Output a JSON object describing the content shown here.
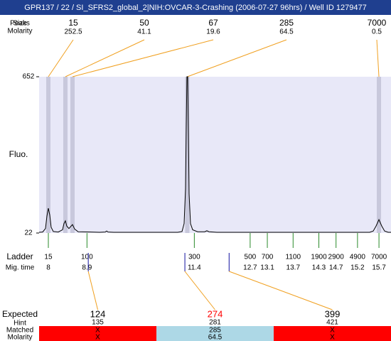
{
  "title": "GPR137 / 22 / SI_SFRS2_global_2|NIH:OVCAR-3-Crashing (2006-07-27 96hrs) / Well ID 1279477",
  "chart_data": {
    "type": "line",
    "y_label": "Fluo.",
    "x": [
      7.785,
      7.868,
      7.934,
      7.967,
      8.0,
      8.033,
      8.066,
      8.116,
      8.232,
      8.331,
      8.364,
      8.397,
      8.43,
      8.48,
      8.53,
      8.563,
      8.613,
      8.695,
      9.192,
      9.325,
      9.358,
      9.391,
      9.523,
      11.013,
      11.113,
      11.162,
      11.195,
      11.212,
      11.228,
      11.245,
      11.262,
      11.278,
      11.311,
      11.361,
      11.477,
      11.642,
      11.692,
      11.742,
      11.924,
      15.483,
      15.566,
      15.632,
      15.699,
      15.765,
      15.831,
      15.914,
      15.98
    ],
    "series": [
      {
        "color": "#000000",
        "values": [
          25,
          26,
          40,
          90,
          122,
          95,
          45,
          28,
          26,
          35,
          60,
          71,
          50,
          40,
          50,
          56,
          38,
          27,
          25,
          26,
          30,
          26,
          25,
          25,
          28,
          60,
          200,
          450,
          652,
          652,
          420,
          180,
          60,
          35,
          27,
          27,
          31,
          27,
          25,
          25,
          30,
          50,
          76,
          50,
          30,
          25,
          25
        ]
      }
    ],
    "xlim": [
      7.785,
      15.98
    ],
    "ylim": [
      22,
      652
    ],
    "yticks": [
      22,
      652
    ],
    "background": "#e8e8f8",
    "band_color": "#c8c8dc"
  },
  "peaks": {
    "labels": [
      "Peaks",
      "Size",
      "Molarity"
    ],
    "items": [
      {
        "size": 15,
        "molarity": 252.5,
        "time": 8.0
      },
      {
        "size": 50,
        "molarity": 41.1,
        "time": 8.397
      },
      {
        "size": 67,
        "molarity": 19.6,
        "time": 8.563
      },
      {
        "size": 285,
        "molarity": 64.5,
        "time": 11.236
      },
      {
        "size": 7000,
        "molarity": 0.5,
        "time": 15.699
      }
    ]
  },
  "ladder": {
    "labels": [
      "Ladder",
      "Mig. time"
    ],
    "sizes": [
      15,
      100,
      300,
      500,
      700,
      1100,
      1900,
      2900,
      4900,
      7000
    ],
    "times": [
      8,
      8.9,
      11.4,
      12.7,
      13.1,
      13.7,
      14.3,
      14.7,
      15.2,
      15.7
    ]
  },
  "expected": {
    "labels": [
      "Expected",
      "Hint",
      "Matched",
      "Molarity"
    ],
    "items": [
      {
        "expected": 124,
        "hint": 135,
        "matched": "X",
        "molarity": "X",
        "time": 8.93,
        "color": "#000000",
        "fill": "#ff0000"
      },
      {
        "expected": 274,
        "hint": 281,
        "matched": 285,
        "molarity": 64.5,
        "time": 11.18,
        "color": "#ff0000",
        "fill": "#add8e6"
      },
      {
        "expected": 399,
        "hint": 421,
        "matched": "X",
        "molarity": "X",
        "time": 12.21,
        "color": "#000000",
        "fill": "#ff0000"
      }
    ]
  }
}
